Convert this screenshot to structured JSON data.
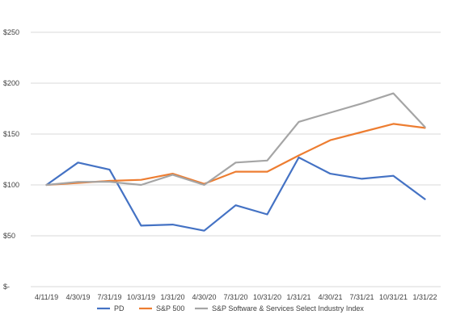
{
  "chart_data": {
    "type": "line",
    "title": "",
    "xlabel": "",
    "ylabel": "",
    "categories": [
      "4/11/19",
      "4/30/19",
      "7/31/19",
      "10/31/19",
      "1/31/20",
      "4/30/20",
      "7/31/20",
      "10/31/20",
      "1/31/21",
      "4/30/21",
      "7/31/21",
      "10/31/21",
      "1/31/22"
    ],
    "ylim": [
      0,
      250
    ],
    "yticks": [
      {
        "value": 0,
        "label": "$-"
      },
      {
        "value": 50,
        "label": "$50"
      },
      {
        "value": 100,
        "label": "$100"
      },
      {
        "value": 150,
        "label": "$150"
      },
      {
        "value": 200,
        "label": "$200"
      },
      {
        "value": 250,
        "label": "$250"
      }
    ],
    "grid": true,
    "legend_position": "bottom",
    "series": [
      {
        "name": "PD",
        "color": "#4472c4",
        "values": [
          100,
          122,
          115,
          60,
          61,
          55,
          80,
          71,
          127,
          111,
          106,
          109,
          86
        ]
      },
      {
        "name": "S&P 500",
        "color": "#ed7d31",
        "values": [
          100,
          102,
          104,
          105,
          111,
          101,
          113,
          113,
          129,
          144,
          152,
          160,
          156
        ]
      },
      {
        "name": "S&P Software & Services Select Industry Index",
        "color": "#a5a5a5",
        "values": [
          100,
          103,
          103,
          100,
          110,
          100,
          122,
          124,
          162,
          171,
          180,
          190,
          157
        ]
      }
    ]
  }
}
